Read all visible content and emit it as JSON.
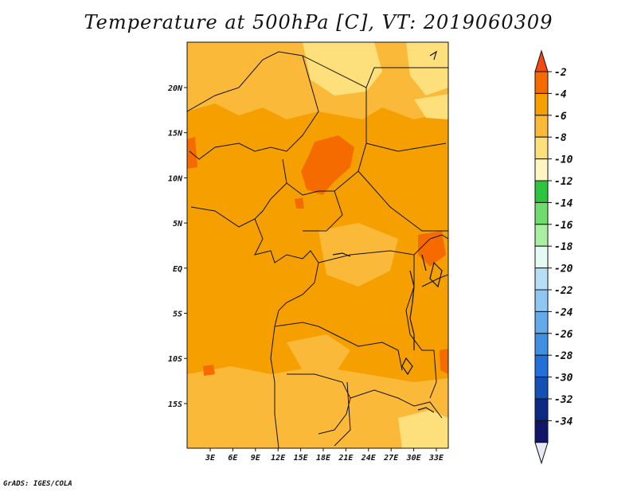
{
  "title": "Temperature at 500hPa [C], VT: 2019060309",
  "credit": "GrADS: IGES/COLA",
  "map": {
    "lon_range": [
      0,
      35
    ],
    "lat_range": [
      -20,
      24
    ],
    "lon_ticks": [
      "3E",
      "6E",
      "9E",
      "12E",
      "15E",
      "18E",
      "21E",
      "24E",
      "27E",
      "30E",
      "33E"
    ],
    "lat_ticks": [
      "20N",
      "15N",
      "10N",
      "5N",
      "EQ",
      "5S",
      "10S",
      "15S"
    ],
    "dominant_range": "-6 to -4",
    "background_color": "#f5a000"
  },
  "colorbar": {
    "labels": [
      "-2",
      "-4",
      "-6",
      "-8",
      "-10",
      "-12",
      "-14",
      "-16",
      "-18",
      "-20",
      "-22",
      "-24",
      "-26",
      "-28",
      "-30",
      "-32",
      "-34"
    ],
    "colors": [
      "#f04a12",
      "#f56b00",
      "#f5a000",
      "#fbb93a",
      "#fde07c",
      "#fff6c4",
      "#2ec43e",
      "#6fdc6c",
      "#a8efa2",
      "#e6fbf3",
      "#b6def5",
      "#8ec8f2",
      "#62aaea",
      "#3f8fe2",
      "#2170da",
      "#1352b4",
      "#0c2a82",
      "#101568",
      "#e8e8f8"
    ]
  }
}
